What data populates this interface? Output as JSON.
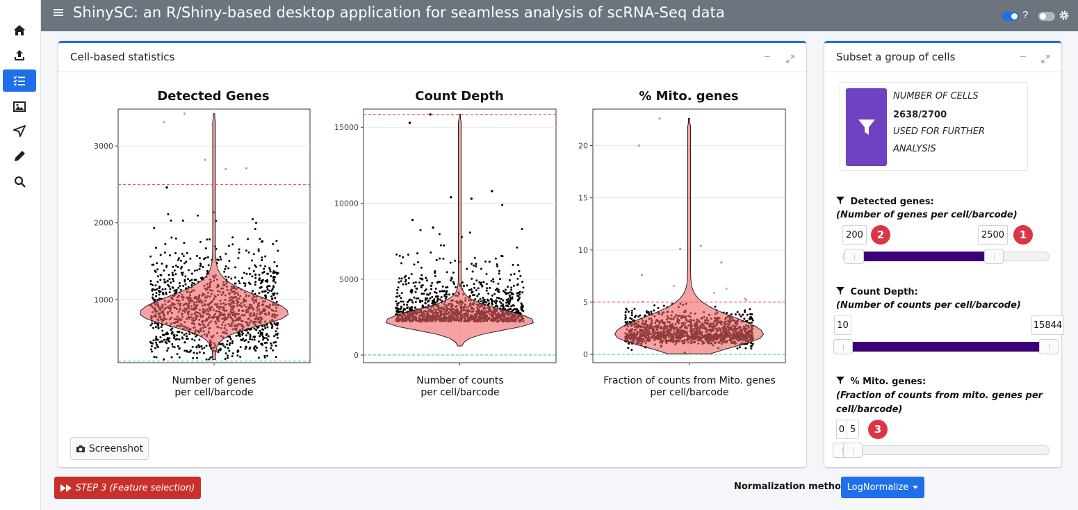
{
  "navbar": {
    "title": "ShinySC: an R/Shiny-based desktop application for seamless analysis of scRNA-Seq data",
    "help": "?"
  },
  "sidebar": {
    "items": [
      {
        "icon": "home-icon"
      },
      {
        "icon": "upload-icon"
      },
      {
        "icon": "checklist-icon",
        "active": true
      },
      {
        "icon": "image-icon"
      },
      {
        "icon": "send-icon"
      },
      {
        "icon": "pencil-icon"
      },
      {
        "icon": "search-icon"
      }
    ]
  },
  "stats_card": {
    "title": "Cell-based statistics",
    "screenshot_label": "Screenshot"
  },
  "subset_card": {
    "title": "Subset a group of cells",
    "info": {
      "line1": "NUMBER OF CELLS",
      "count": "2638/2700",
      "line3": "USED FOR FURTHER",
      "line4": "ANALYSIS"
    },
    "filters": {
      "genes": {
        "label": "Detected genes:",
        "sub": "(Number of genes per cell/barcode)",
        "min": "200",
        "max": "2500",
        "badge_min": "2",
        "badge_max": "1"
      },
      "counts": {
        "label": "Count Depth:",
        "sub": "(Number of counts per cell/barcode)",
        "min": "10",
        "max": "15844"
      },
      "mito": {
        "label": "% Mito. genes:",
        "sub1": "(Fraction of counts from mito. genes per",
        "sub2": "cell/barcode)",
        "min": "0",
        "max": "5",
        "badge": "3"
      }
    }
  },
  "footer": {
    "step_button": "STEP 3 (Feature selection)",
    "norm_label": "Normalization method:",
    "norm_value": "LogNormalize"
  },
  "chart_data": [
    {
      "type": "violin",
      "title": "Detected Genes",
      "xlabel": "Number of genes\nper cell/barcode",
      "ylim": [
        180,
        3480
      ],
      "yticks": [
        1000,
        2000,
        3000
      ],
      "thresholds": {
        "upper": 2500,
        "lower": 200
      },
      "median": 820,
      "outliers": [
        3310,
        3420,
        2820,
        2700,
        2710,
        2460
      ]
    },
    {
      "type": "violin",
      "title": "Count Depth",
      "xlabel": "Number of counts\nper cell/barcode",
      "ylim": [
        -500,
        16200
      ],
      "yticks": [
        0,
        5000,
        10000,
        15000
      ],
      "thresholds": {
        "upper": 15844,
        "lower": 10
      },
      "median": 2200,
      "outliers": [
        15300,
        15844,
        10400,
        10300,
        10800,
        8900,
        8400
      ]
    },
    {
      "type": "violin",
      "title": "% Mito. genes",
      "xlabel": "Fraction of counts from Mito. genes\nper cell/barcode",
      "ylim": [
        -0.8,
        23.5
      ],
      "yticks": [
        0,
        5,
        10,
        15,
        20
      ],
      "thresholds": {
        "upper": 5,
        "lower": 0
      },
      "median": 1.9,
      "outliers": [
        20.0,
        22.6,
        10.1,
        10.4,
        8.8,
        7.6
      ]
    }
  ]
}
